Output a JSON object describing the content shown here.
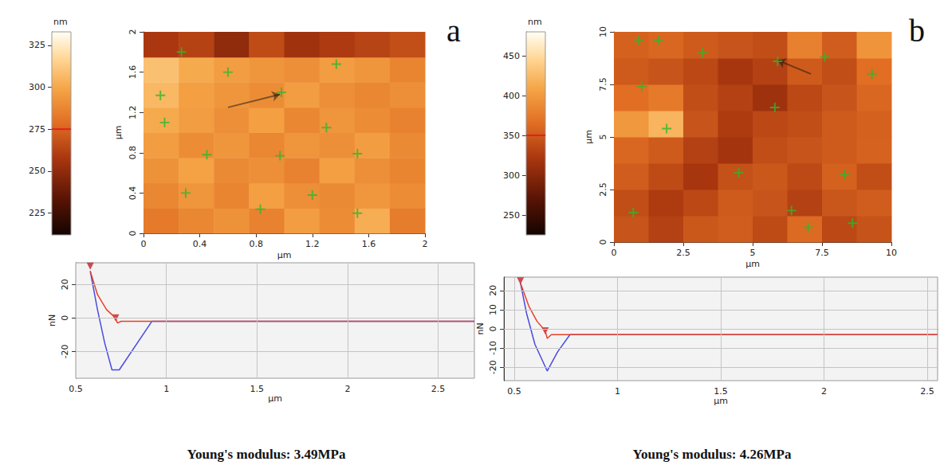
{
  "chart_data": [
    {
      "type": "heatmap",
      "label": "a",
      "xlabel": "μm",
      "ylabel": "μm",
      "xlim": [
        0,
        2
      ],
      "ylim": [
        0,
        2
      ],
      "xticks": [
        0,
        0.4,
        0.8,
        1.2,
        1.6,
        2
      ],
      "yticks": [
        0,
        0.4,
        0.8,
        1.2,
        1.6,
        2
      ],
      "cells": [
        [
          283,
          288,
          292,
          286,
          296,
          290,
          302,
          284
        ],
        [
          288,
          293,
          287,
          297,
          291,
          289,
          294,
          290
        ],
        [
          292,
          298,
          289,
          291,
          286,
          297,
          291,
          287
        ],
        [
          296,
          290,
          293,
          288,
          293,
          291,
          296,
          289
        ],
        [
          301,
          296,
          291,
          297,
          288,
          293,
          290,
          286
        ],
        [
          306,
          297,
          293,
          290,
          296,
          291,
          288,
          291
        ],
        [
          309,
          301,
          296,
          293,
          291,
          296,
          293,
          287
        ],
        [
          258,
          262,
          250,
          266,
          255,
          259,
          263,
          267
        ]
      ],
      "colorbar": {
        "label": "nm",
        "lim": [
          212,
          333
        ],
        "ticks": [
          225,
          250,
          275,
          300,
          325
        ],
        "marker": 275
      },
      "points": {
        "x": [
          0.27,
          0.6,
          1.37,
          0.12,
          0.98,
          0.15,
          1.3,
          0.45,
          0.97,
          1.52,
          0.3,
          1.2,
          0.83,
          1.52
        ],
        "y": [
          1.8,
          1.6,
          1.68,
          1.37,
          1.4,
          1.1,
          1.05,
          0.78,
          0.77,
          0.79,
          0.4,
          0.38,
          0.24,
          0.2
        ],
        "marker": "cross",
        "color": "#2db82d"
      },
      "arrow": {
        "from": [
          0.6,
          1.25
        ],
        "to": [
          0.97,
          1.38
        ]
      }
    },
    {
      "type": "line",
      "xlabel": "μm",
      "ylabel": "nN",
      "xlim": [
        0.5,
        2.7
      ],
      "ylim": [
        -36,
        33
      ],
      "xticks": [
        0.5,
        1,
        1.5,
        2,
        2.5
      ],
      "yticks": [
        -20,
        0,
        20
      ],
      "grid": true,
      "series": [
        {
          "color": "#4a4ae0",
          "x": [
            0.58,
            0.62,
            0.66,
            0.7,
            0.74,
            0.92,
            2.7
          ],
          "values": [
            28,
            5,
            -15,
            -31,
            -31,
            -2,
            -2
          ]
        },
        {
          "color": "#e8402a",
          "x": [
            0.58,
            0.62,
            0.67,
            0.72,
            0.73,
            0.75,
            2.7
          ],
          "values": [
            28,
            14,
            5,
            0,
            -3,
            -2,
            -2
          ]
        }
      ],
      "markers": {
        "x": [
          0.58,
          0.72
        ],
        "y": [
          31,
          0
        ],
        "marker": "triangle-down",
        "color": "#c0202a"
      },
      "caption": "Young's modulus: 3.49MPa"
    },
    {
      "type": "heatmap",
      "label": "b",
      "xlabel": "μm",
      "ylabel": "μm",
      "xlim": [
        0,
        10
      ],
      "ylim": [
        0,
        10
      ],
      "xticks": [
        0,
        2.5,
        5,
        7.5,
        10
      ],
      "yticks": [
        0,
        2.5,
        5,
        7.5,
        10
      ],
      "cells": [
        [
          345,
          330,
          348,
          352,
          338,
          362,
          335,
          344
        ],
        [
          340,
          325,
          335,
          350,
          345,
          330,
          346,
          352
        ],
        [
          352,
          338,
          320,
          342,
          348,
          336,
          355,
          340
        ],
        [
          360,
          350,
          330,
          318,
          340,
          345,
          350,
          356
        ],
        [
          398,
          420,
          345,
          325,
          335,
          340,
          350,
          355
        ],
        [
          365,
          375,
          340,
          330,
          315,
          335,
          345,
          360
        ],
        [
          350,
          345,
          335,
          320,
          330,
          350,
          340,
          365
        ],
        [
          355,
          360,
          350,
          345,
          340,
          380,
          352,
          395
        ]
      ],
      "colorbar": {
        "label": "nm",
        "lim": [
          225,
          480
        ],
        "ticks": [
          250,
          300,
          350,
          400,
          450
        ],
        "marker": 350
      },
      "points": {
        "x": [
          0.9,
          1.6,
          3.2,
          7.6,
          9.3,
          5.9,
          1,
          5.8,
          1.9,
          4.5,
          8.3,
          0.7,
          6.4,
          7,
          8.6
        ],
        "y": [
          9.6,
          9.6,
          9,
          8.8,
          8,
          8.6,
          7.4,
          6.4,
          5.4,
          3.3,
          3.2,
          1.4,
          1.5,
          0.7,
          0.9
        ],
        "marker": "cross",
        "color": "#2db82d"
      },
      "arrow": {
        "from": [
          7.1,
          8.0
        ],
        "to": [
          5.9,
          8.65
        ]
      }
    },
    {
      "type": "line",
      "xlabel": "μm",
      "ylabel": "nN",
      "xlim": [
        0.45,
        2.55
      ],
      "ylim": [
        -27,
        27
      ],
      "xticks": [
        0.5,
        1,
        1.5,
        2,
        2.5
      ],
      "yticks": [
        -20,
        -10,
        0,
        10,
        20
      ],
      "grid": true,
      "series": [
        {
          "color": "#4a4ae0",
          "x": [
            0.53,
            0.56,
            0.6,
            0.66,
            0.71,
            0.77,
            2.55
          ],
          "values": [
            24,
            8,
            -8,
            -22,
            -12,
            -3,
            -3
          ]
        },
        {
          "color": "#e8402a",
          "x": [
            0.53,
            0.57,
            0.61,
            0.65,
            0.66,
            0.68,
            2.55
          ],
          "values": [
            24,
            12,
            4,
            -1,
            -5,
            -3,
            -3
          ]
        }
      ],
      "markers": {
        "x": [
          0.53,
          0.65
        ],
        "y": [
          25,
          -1
        ],
        "marker": "triangle-down",
        "color": "#c0202a"
      },
      "caption": "Young's modulus: 4.26MPa"
    }
  ]
}
